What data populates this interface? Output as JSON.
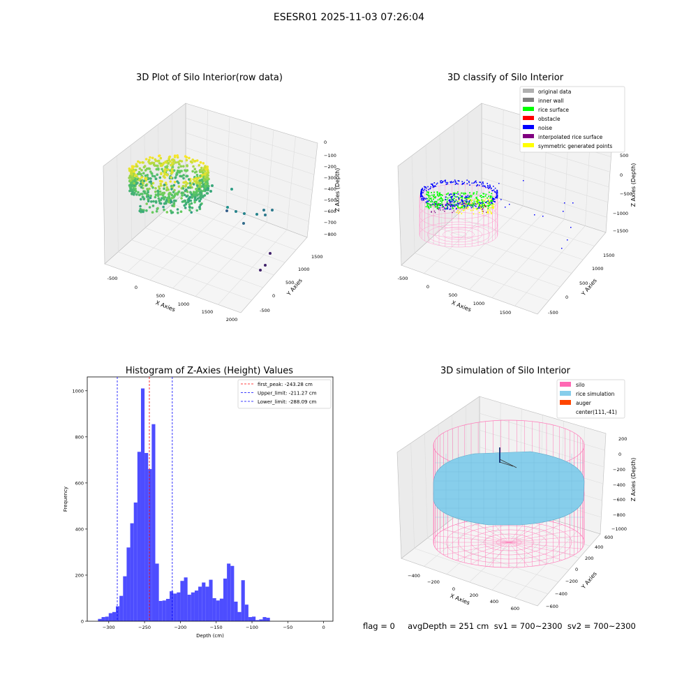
{
  "figure": {
    "title": "ESESR01 2025-11-03 07:26:04",
    "status_text": "flag = 0     avgDepth = 251 cm  sv1 = 700~2300  sv2 = 700~2300"
  },
  "chart_data": [
    {
      "type": "scatter",
      "is_3d": true,
      "title": "3D Plot of Silo Interior(row data)",
      "xlabel": "X Axies",
      "ylabel": "Y Axies",
      "zlabel": "Z Axies (Depth)",
      "x_ticks": [
        "-500",
        "0",
        "500",
        "1000",
        "1500",
        "2000"
      ],
      "y_ticks": [
        "-500",
        "0",
        "500",
        "1000",
        "1500"
      ],
      "z_ticks": [
        "0",
        "−100",
        "−200",
        "−300",
        "−400",
        "−500",
        "−600",
        "−700",
        "−800"
      ],
      "xlim": [
        -500,
        2000
      ],
      "ylim": [
        -500,
        1500
      ],
      "zlim": [
        -800,
        0
      ],
      "colormap": "viridis"
    },
    {
      "type": "scatter",
      "is_3d": true,
      "title": "3D classify of Silo Interior",
      "xlabel": "X Axies",
      "ylabel": "Y Axies",
      "zlabel": "Z Axies (Depth)",
      "x_ticks": [
        "-500",
        "0",
        "500",
        "1000",
        "1500"
      ],
      "y_ticks": [
        "-500",
        "0",
        "500",
        "1000",
        "1500"
      ],
      "z_ticks": [
        "500",
        "0",
        "−500",
        "−1000",
        "−1500"
      ],
      "legend_position": "top-right",
      "legend": [
        {
          "label": "original data",
          "color": "#b0b0b0"
        },
        {
          "label": "inner wall",
          "color": "#808080"
        },
        {
          "label": "rice surface",
          "color": "#00ff00"
        },
        {
          "label": "obstacle",
          "color": "#ff0000"
        },
        {
          "label": "noise",
          "color": "#0000ff"
        },
        {
          "label": "interpolated rice surface",
          "color": "#800080"
        },
        {
          "label": "symmetric generated points",
          "color": "#ffff00"
        }
      ]
    },
    {
      "type": "bar",
      "title": "Histogram of Z-Axies (Height) Values",
      "xlabel": "Depth (cm)",
      "ylabel": "Frequency",
      "xlim": [
        -330,
        13
      ],
      "ylim": [
        0,
        1060
      ],
      "bin_width": 5,
      "x_ticks": [
        -300,
        -250,
        -200,
        -150,
        -100,
        -50,
        0
      ],
      "y_ticks": [
        0,
        200,
        400,
        600,
        800,
        1000
      ],
      "bar_color": "#4d4dff",
      "bins": [
        {
          "x": -315,
          "y": 10
        },
        {
          "x": -310,
          "y": 18
        },
        {
          "x": -305,
          "y": 20
        },
        {
          "x": -300,
          "y": 35
        },
        {
          "x": -295,
          "y": 40
        },
        {
          "x": -290,
          "y": 65
        },
        {
          "x": -285,
          "y": 110
        },
        {
          "x": -280,
          "y": 195
        },
        {
          "x": -275,
          "y": 320
        },
        {
          "x": -270,
          "y": 425
        },
        {
          "x": -265,
          "y": 515
        },
        {
          "x": -260,
          "y": 735
        },
        {
          "x": -255,
          "y": 1010
        },
        {
          "x": -250,
          "y": 730
        },
        {
          "x": -245,
          "y": 660
        },
        {
          "x": -240,
          "y": 855
        },
        {
          "x": -235,
          "y": 250
        },
        {
          "x": -230,
          "y": 88
        },
        {
          "x": -225,
          "y": 90
        },
        {
          "x": -220,
          "y": 97
        },
        {
          "x": -215,
          "y": 130
        },
        {
          "x": -210,
          "y": 120
        },
        {
          "x": -205,
          "y": 125
        },
        {
          "x": -200,
          "y": 175
        },
        {
          "x": -195,
          "y": 190
        },
        {
          "x": -190,
          "y": 115
        },
        {
          "x": -185,
          "y": 125
        },
        {
          "x": -180,
          "y": 133
        },
        {
          "x": -175,
          "y": 150
        },
        {
          "x": -170,
          "y": 168
        },
        {
          "x": -165,
          "y": 150
        },
        {
          "x": -160,
          "y": 180
        },
        {
          "x": -155,
          "y": 100
        },
        {
          "x": -150,
          "y": 90
        },
        {
          "x": -145,
          "y": 98
        },
        {
          "x": -140,
          "y": 185
        },
        {
          "x": -135,
          "y": 250
        },
        {
          "x": -130,
          "y": 240
        },
        {
          "x": -125,
          "y": 85
        },
        {
          "x": -120,
          "y": 40
        },
        {
          "x": -115,
          "y": 178
        },
        {
          "x": -110,
          "y": 72
        },
        {
          "x": -105,
          "y": 18
        },
        {
          "x": -100,
          "y": 20
        },
        {
          "x": -95,
          "y": 5
        },
        {
          "x": -90,
          "y": 8
        },
        {
          "x": -85,
          "y": 18
        },
        {
          "x": -80,
          "y": 15
        }
      ],
      "vlines": [
        {
          "x": -243.28,
          "label": "first_peak: -243.28 cm",
          "color": "#ff0000"
        },
        {
          "x": -211.27,
          "label": "Upper_limit: -211.27 cm",
          "color": "#0000ff"
        },
        {
          "x": -288.09,
          "label": "Lower_limit: -288.09 cm",
          "color": "#0000ff"
        }
      ],
      "legend_position": "top-right"
    },
    {
      "type": "surface",
      "is_3d": true,
      "title": "3D simulation of Silo Interior",
      "xlabel": "X Axies",
      "ylabel": "Y Axies",
      "zlabel": "Z Axies (Depth)",
      "x_ticks": [
        "−400",
        "−200",
        "0",
        "200",
        "400",
        "600"
      ],
      "y_ticks": [
        "−600",
        "−400",
        "−200",
        "0",
        "200",
        "400",
        "600"
      ],
      "z_ticks": [
        "200",
        "0",
        "−200",
        "−400",
        "−600",
        "−800",
        "−1000"
      ],
      "legend_position": "top-right",
      "legend": [
        {
          "label": "silo",
          "color": "#ff69b4"
        },
        {
          "label": "rice simulation",
          "color": "#87ceeb"
        },
        {
          "label": "auger",
          "color": "#ff4500"
        },
        {
          "label": "center(111,-41)",
          "color": ""
        }
      ]
    }
  ]
}
